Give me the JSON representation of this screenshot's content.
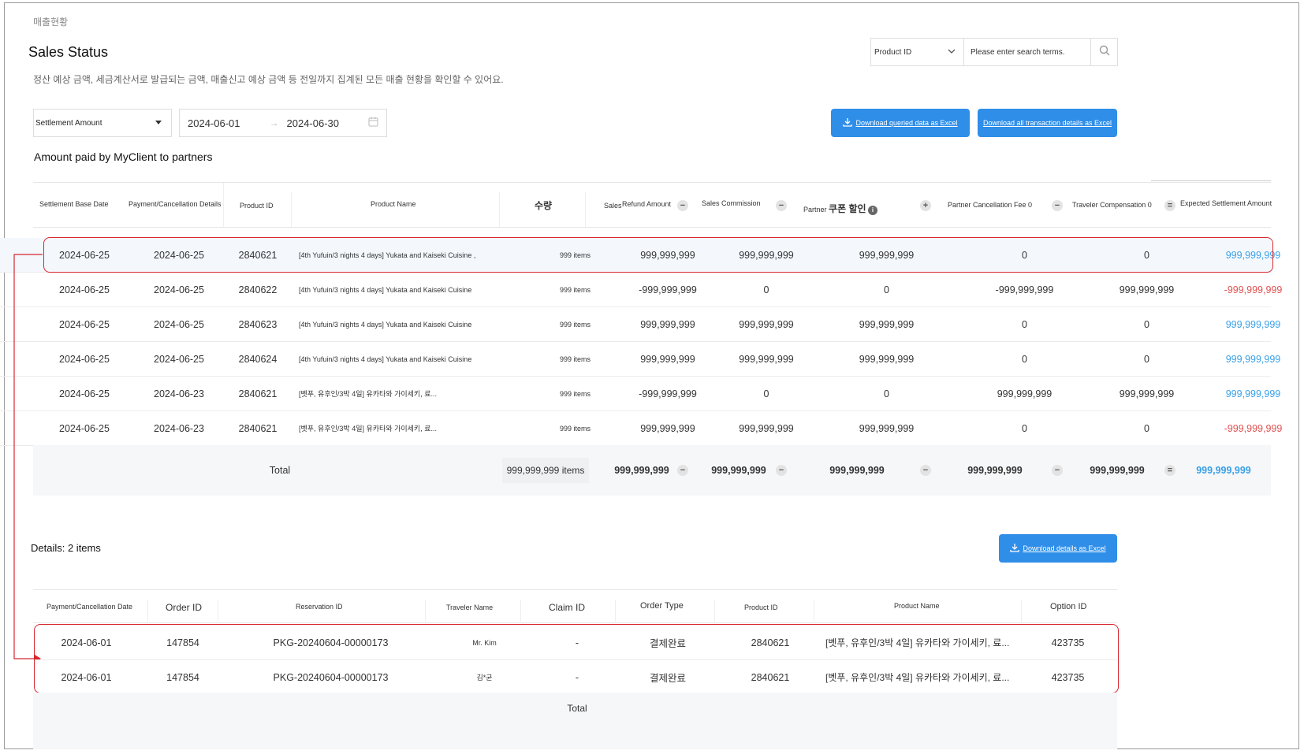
{
  "breadcrumb": "매출현황",
  "title": "Sales Status",
  "description": "정산 예상 금액, 세금계산서로 발급되는 금액, 매출신고 예상 금액 등 전일까지 집계된 모든 매출 현황을 확인할 수 있어요.",
  "search": {
    "select_value": "Product ID",
    "placeholder": "Please enter search terms."
  },
  "filter": {
    "type_value": "Settlement Amount",
    "date_from": "2024-06-01",
    "date_to": "2024-06-30"
  },
  "buttons": {
    "download_queried": "Download queried data as Excel",
    "download_all": "Download all transaction details as Excel",
    "download_details": "Download details as Excel"
  },
  "summary": {
    "section_title": "Amount paid by MyClient to partners",
    "headers": {
      "base_date": "Settlement Base Date",
      "pay_details": "Payment/Cancellation Details",
      "product_id": "Product ID",
      "product_name": "Product Name",
      "qty": "수량",
      "sales": "Sales",
      "refund": "Refund Amount",
      "commission": "Sales Commission",
      "partner_prefix": "Partner",
      "partner_coupon": "쿠폰 할인",
      "cancel_fee": "Partner Cancellation Fee 0",
      "traveler_comp": "Traveler Compensation 0",
      "expected": "Expected Settlement Amount"
    },
    "operators": [
      "−",
      "−",
      "+",
      "−",
      "−",
      "="
    ],
    "rows": [
      {
        "base_date": "2024-06-25",
        "pay_date": "2024-06-25",
        "product_id": "2840621",
        "product_name": "[4th Yufuin/3 nights 4 days] Yukata and Kaiseki Cuisine ,",
        "qty": "999 items",
        "sales": "999,999,999",
        "commission": "999,999,999",
        "coupon": "999,999,999",
        "cancel_fee": "0",
        "traveler_comp": "0",
        "expected": "999,999,999",
        "expected_sign": "pos"
      },
      {
        "base_date": "2024-06-25",
        "pay_date": "2024-06-25",
        "product_id": "2840622",
        "product_name": "[4th Yufuin/3 nights 4 days] Yukata and Kaiseki Cuisine",
        "qty": "999 items",
        "sales": "-999,999,999",
        "commission": "0",
        "coupon": "0",
        "cancel_fee": "-999,999,999",
        "traveler_comp": "999,999,999",
        "expected": "-999,999,999",
        "expected_sign": "neg"
      },
      {
        "base_date": "2024-06-25",
        "pay_date": "2024-06-25",
        "product_id": "2840623",
        "product_name": "[4th Yufuin/3 nights 4 days] Yukata and Kaiseki Cuisine",
        "qty": "999 items",
        "sales": "999,999,999",
        "commission": "999,999,999",
        "coupon": "999,999,999",
        "cancel_fee": "0",
        "traveler_comp": "0",
        "expected": "999,999,999",
        "expected_sign": "pos"
      },
      {
        "base_date": "2024-06-25",
        "pay_date": "2024-06-25",
        "product_id": "2840624",
        "product_name": "[4th Yufuin/3 nights 4 days] Yukata and Kaiseki Cuisine",
        "qty": "999 items",
        "sales": "999,999,999",
        "commission": "999,999,999",
        "coupon": "999,999,999",
        "cancel_fee": "0",
        "traveler_comp": "0",
        "expected": "999,999,999",
        "expected_sign": "pos"
      },
      {
        "base_date": "2024-06-25",
        "pay_date": "2024-06-23",
        "product_id": "2840621",
        "product_name": "[벳푸, 유후인/3박 4일] 유카타와 가이세키, 료...",
        "qty": "999 items",
        "sales": "-999,999,999",
        "commission": "0",
        "coupon": "0",
        "cancel_fee": "999,999,999",
        "traveler_comp": "999,999,999",
        "expected": "999,999,999",
        "expected_sign": "pos"
      },
      {
        "base_date": "2024-06-25",
        "pay_date": "2024-06-23",
        "product_id": "2840621",
        "product_name": "[벳푸, 유후인/3박 4일] 유카타와 가이세키, 료...",
        "qty": "999 items",
        "sales": "999,999,999",
        "commission": "999,999,999",
        "coupon": "999,999,999",
        "cancel_fee": "0",
        "traveler_comp": "0",
        "expected": "-999,999,999",
        "expected_sign": "neg"
      }
    ],
    "total": {
      "label": "Total",
      "qty": "999,999,999 items",
      "sales": "999,999,999",
      "commission": "999,999,999",
      "coupon": "999,999,999",
      "cancel_fee": "999,999,999",
      "traveler_comp": "999,999,999",
      "expected": "999,999,999"
    }
  },
  "details": {
    "title": "Details: 2 items",
    "headers": {
      "date": "Payment/Cancellation Date",
      "order_id": "Order ID",
      "reservation_id": "Reservation ID",
      "traveler": "Traveler Name",
      "claim_id": "Claim ID",
      "order_type": "Order Type",
      "product_id": "Product ID",
      "product_name": "Product Name",
      "option_id": "Option ID"
    },
    "rows": [
      {
        "date": "2024-06-01",
        "order_id": "147854",
        "reservation_id": "PKG-20240604-00000173",
        "traveler": "Mr. Kim",
        "claim_id": "-",
        "order_type": "결제완료",
        "product_id": "2840621",
        "product_name": "[벳푸, 유후인/3박 4일] 유카타와 가이세키, 료...",
        "option_id": "423735"
      },
      {
        "date": "2024-06-01",
        "order_id": "147854",
        "reservation_id": "PKG-20240604-00000173",
        "traveler": "김*균",
        "claim_id": "-",
        "order_type": "결제완료",
        "product_id": "2840621",
        "product_name": "[벳푸, 유후인/3박 4일] 유카타와 가이세키, 료...",
        "option_id": "423735"
      }
    ],
    "total_label": "Total"
  },
  "colors": {
    "accent": "#2f8ee8",
    "positive": "#3aa0e6",
    "negative": "#e05050",
    "highlight": "#d7262e"
  }
}
